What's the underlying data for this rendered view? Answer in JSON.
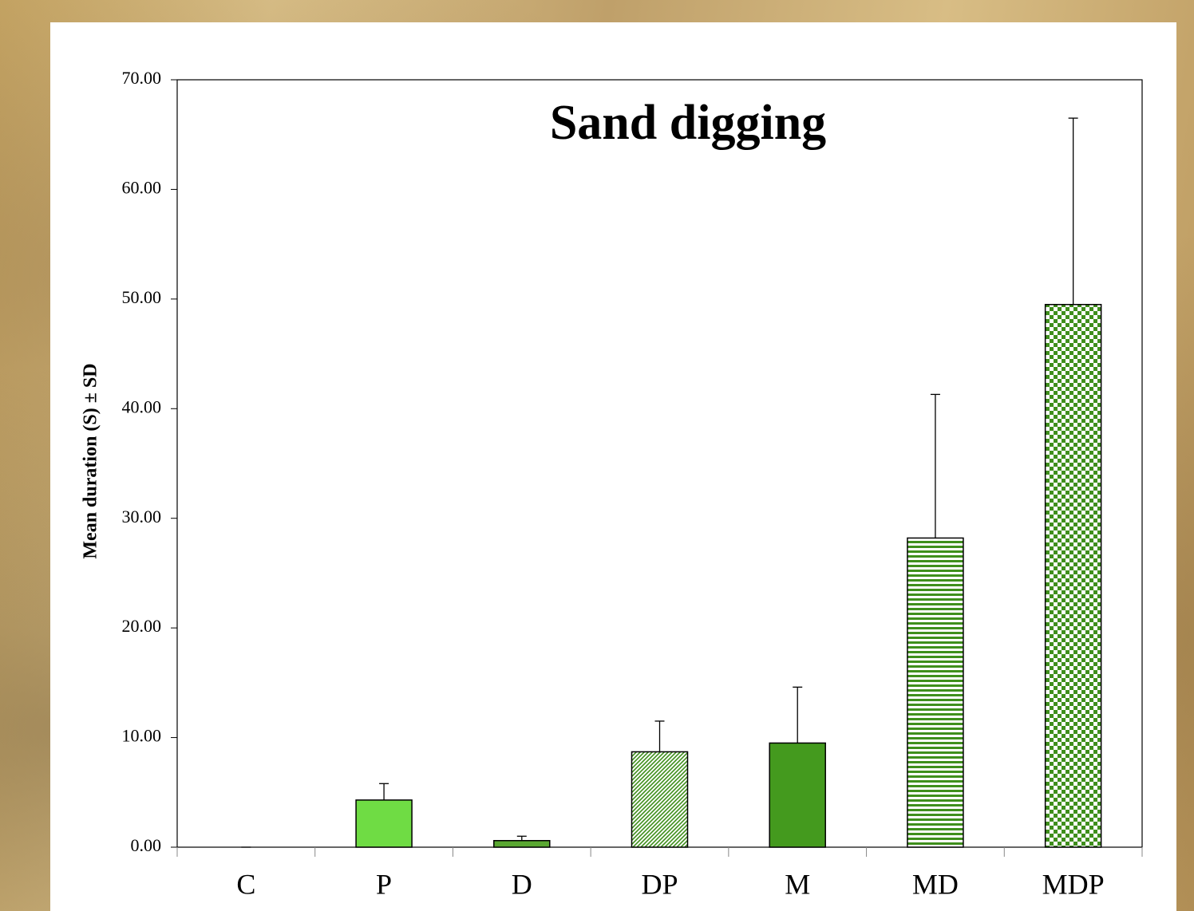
{
  "chart_data": {
    "type": "bar",
    "title": "Sand digging",
    "y_label": "Mean duration (S) ± SD",
    "categories": [
      "C",
      "P",
      "D",
      "DP",
      "M",
      "MD",
      "MDP"
    ],
    "values": [
      0,
      4.3,
      0.6,
      8.7,
      9.5,
      28.2,
      49.5
    ],
    "errors": [
      0,
      1.5,
      0.4,
      2.8,
      5.1,
      13.1,
      17.0
    ],
    "colors": [
      "#6fdc44",
      "#6fdc44",
      "#5aa832",
      "#3f8f1c",
      "#449a1e",
      "#3f8f1c",
      "#3f8f1c"
    ],
    "patterns": [
      "solid",
      "solid",
      "solid",
      "diagonal",
      "solid",
      "horizontal",
      "checker"
    ],
    "ylim": [
      0,
      70
    ],
    "yticks": [
      {
        "value": 0,
        "label": "0.00"
      },
      {
        "value": 10,
        "label": "10.00"
      },
      {
        "value": 20,
        "label": "20.00"
      },
      {
        "value": 30,
        "label": "30.00"
      },
      {
        "value": 40,
        "label": "40.00"
      },
      {
        "value": 50,
        "label": "50.00"
      },
      {
        "value": 60,
        "label": "60.00"
      },
      {
        "value": 70,
        "label": "70.00"
      }
    ],
    "grid": false
  }
}
